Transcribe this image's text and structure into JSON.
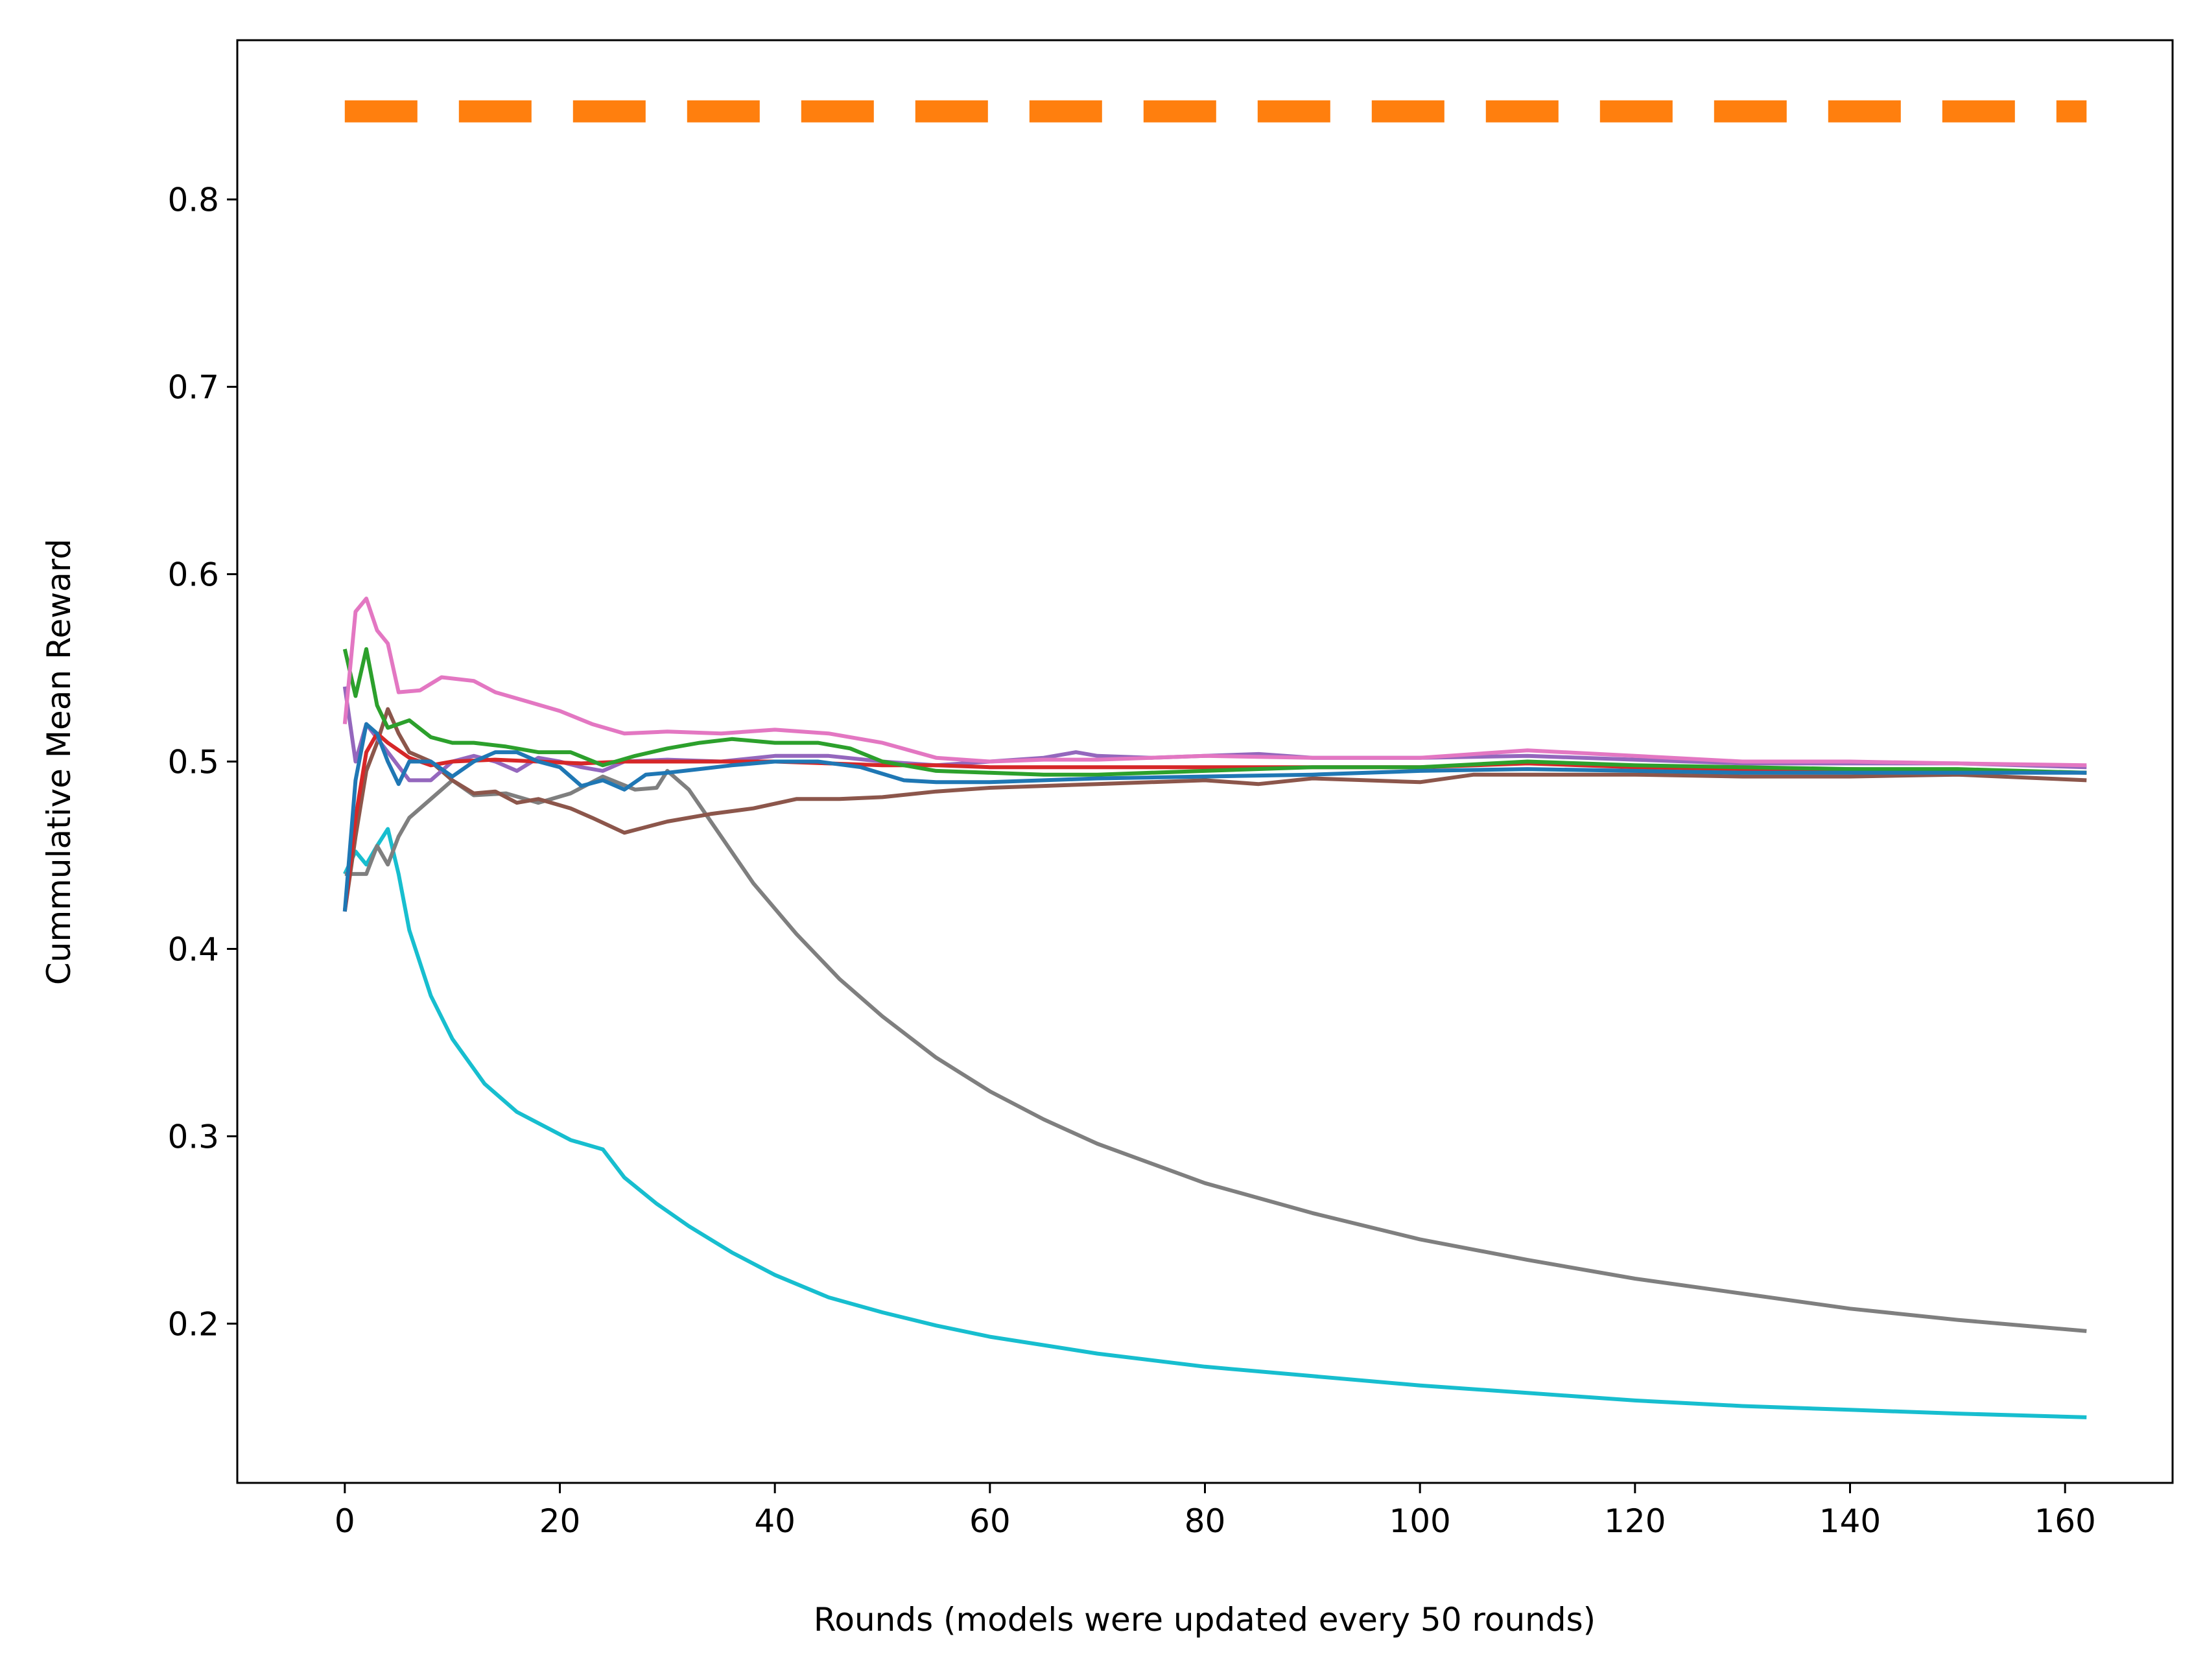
{
  "chart_data": {
    "type": "line",
    "title": "",
    "xlabel": "Rounds (models were updated every 50 rounds)",
    "ylabel": "Cummulative Mean Reward",
    "xlim": [
      -10,
      170
    ],
    "ylim": [
      0.115,
      0.885
    ],
    "xticks": [
      0,
      20,
      40,
      60,
      80,
      100,
      120,
      140,
      160
    ],
    "yticks": [
      0.2,
      0.3,
      0.4,
      0.5,
      0.6,
      0.7,
      0.8
    ],
    "x_tick_labels": [
      "0",
      "20",
      "40",
      "60",
      "80",
      "100",
      "120",
      "140",
      "160"
    ],
    "y_tick_labels": [
      "0.2",
      "0.3",
      "0.4",
      "0.5",
      "0.6",
      "0.7",
      "0.8"
    ],
    "grid": false,
    "legend": "none",
    "series": [
      {
        "color": "#ff7f0e",
        "style": "dashed",
        "points": [
          [
            0,
            0.847
          ],
          [
            162,
            0.847
          ]
        ]
      },
      {
        "color": "#17becf",
        "points": [
          [
            0,
            0.44
          ],
          [
            1,
            0.452
          ],
          [
            2,
            0.445
          ],
          [
            3,
            0.455
          ],
          [
            4,
            0.464
          ],
          [
            5,
            0.44
          ],
          [
            6,
            0.41
          ],
          [
            8,
            0.375
          ],
          [
            10,
            0.352
          ],
          [
            13,
            0.328
          ],
          [
            16,
            0.313
          ],
          [
            18,
            0.307
          ],
          [
            21,
            0.298
          ],
          [
            24,
            0.293
          ],
          [
            26,
            0.278
          ],
          [
            29,
            0.264
          ],
          [
            32,
            0.252
          ],
          [
            36,
            0.238
          ],
          [
            40,
            0.226
          ],
          [
            45,
            0.214
          ],
          [
            50,
            0.206
          ],
          [
            55,
            0.199
          ],
          [
            60,
            0.193
          ],
          [
            70,
            0.184
          ],
          [
            80,
            0.177
          ],
          [
            90,
            0.172
          ],
          [
            100,
            0.167
          ],
          [
            110,
            0.163
          ],
          [
            120,
            0.159
          ],
          [
            130,
            0.156
          ],
          [
            140,
            0.154
          ],
          [
            150,
            0.152
          ],
          [
            162,
            0.15
          ]
        ]
      },
      {
        "color": "#7f7f7f",
        "points": [
          [
            0,
            0.44
          ],
          [
            2,
            0.44
          ],
          [
            3,
            0.455
          ],
          [
            4,
            0.445
          ],
          [
            5,
            0.46
          ],
          [
            6,
            0.47
          ],
          [
            8,
            0.48
          ],
          [
            10,
            0.49
          ],
          [
            12,
            0.482
          ],
          [
            15,
            0.483
          ],
          [
            18,
            0.478
          ],
          [
            21,
            0.483
          ],
          [
            24,
            0.492
          ],
          [
            27,
            0.485
          ],
          [
            29,
            0.486
          ],
          [
            30,
            0.495
          ],
          [
            32,
            0.485
          ],
          [
            35,
            0.46
          ],
          [
            38,
            0.435
          ],
          [
            42,
            0.408
          ],
          [
            46,
            0.384
          ],
          [
            50,
            0.364
          ],
          [
            55,
            0.342
          ],
          [
            60,
            0.324
          ],
          [
            65,
            0.309
          ],
          [
            70,
            0.296
          ],
          [
            80,
            0.275
          ],
          [
            90,
            0.259
          ],
          [
            100,
            0.245
          ],
          [
            110,
            0.234
          ],
          [
            120,
            0.224
          ],
          [
            130,
            0.216
          ],
          [
            140,
            0.208
          ],
          [
            150,
            0.202
          ],
          [
            162,
            0.196
          ]
        ]
      },
      {
        "color": "#8c564b",
        "points": [
          [
            0,
            0.42
          ],
          [
            1,
            0.46
          ],
          [
            2,
            0.495
          ],
          [
            3,
            0.51
          ],
          [
            4,
            0.528
          ],
          [
            5,
            0.515
          ],
          [
            6,
            0.505
          ],
          [
            8,
            0.5
          ],
          [
            10,
            0.49
          ],
          [
            12,
            0.483
          ],
          [
            14,
            0.484
          ],
          [
            16,
            0.478
          ],
          [
            18,
            0.48
          ],
          [
            21,
            0.475
          ],
          [
            23,
            0.47
          ],
          [
            26,
            0.462
          ],
          [
            28,
            0.465
          ],
          [
            30,
            0.468
          ],
          [
            34,
            0.472
          ],
          [
            38,
            0.475
          ],
          [
            42,
            0.48
          ],
          [
            46,
            0.48
          ],
          [
            50,
            0.481
          ],
          [
            55,
            0.484
          ],
          [
            60,
            0.486
          ],
          [
            65,
            0.487
          ],
          [
            70,
            0.488
          ],
          [
            80,
            0.49
          ],
          [
            85,
            0.488
          ],
          [
            90,
            0.491
          ],
          [
            95,
            0.49
          ],
          [
            100,
            0.489
          ],
          [
            105,
            0.493
          ],
          [
            110,
            0.493
          ],
          [
            120,
            0.493
          ],
          [
            130,
            0.492
          ],
          [
            140,
            0.492
          ],
          [
            150,
            0.493
          ],
          [
            162,
            0.49
          ]
        ]
      },
      {
        "color": "#9467bd",
        "points": [
          [
            0,
            0.54
          ],
          [
            1,
            0.5
          ],
          [
            2,
            0.52
          ],
          [
            4,
            0.505
          ],
          [
            6,
            0.49
          ],
          [
            8,
            0.49
          ],
          [
            10,
            0.5
          ],
          [
            12,
            0.503
          ],
          [
            14,
            0.5
          ],
          [
            16,
            0.495
          ],
          [
            18,
            0.502
          ],
          [
            20,
            0.5
          ],
          [
            22,
            0.497
          ],
          [
            24,
            0.495
          ],
          [
            26,
            0.5
          ],
          [
            30,
            0.501
          ],
          [
            35,
            0.5
          ],
          [
            40,
            0.503
          ],
          [
            45,
            0.503
          ],
          [
            50,
            0.5
          ],
          [
            55,
            0.498
          ],
          [
            60,
            0.5
          ],
          [
            65,
            0.502
          ],
          [
            68,
            0.505
          ],
          [
            70,
            0.503
          ],
          [
            75,
            0.502
          ],
          [
            80,
            0.503
          ],
          [
            85,
            0.504
          ],
          [
            90,
            0.502
          ],
          [
            100,
            0.502
          ],
          [
            110,
            0.503
          ],
          [
            120,
            0.501
          ],
          [
            130,
            0.499
          ],
          [
            140,
            0.499
          ],
          [
            150,
            0.499
          ],
          [
            162,
            0.497
          ]
        ]
      },
      {
        "color": "#d62728",
        "points": [
          [
            0,
            0.42
          ],
          [
            1,
            0.47
          ],
          [
            2,
            0.505
          ],
          [
            3,
            0.515
          ],
          [
            4,
            0.51
          ],
          [
            6,
            0.502
          ],
          [
            8,
            0.498
          ],
          [
            10,
            0.5
          ],
          [
            14,
            0.501
          ],
          [
            18,
            0.5
          ],
          [
            22,
            0.499
          ],
          [
            26,
            0.5
          ],
          [
            30,
            0.5
          ],
          [
            35,
            0.5
          ],
          [
            40,
            0.5
          ],
          [
            45,
            0.499
          ],
          [
            50,
            0.498
          ],
          [
            55,
            0.498
          ],
          [
            60,
            0.497
          ],
          [
            65,
            0.497
          ],
          [
            70,
            0.497
          ],
          [
            80,
            0.497
          ],
          [
            90,
            0.497
          ],
          [
            100,
            0.497
          ],
          [
            110,
            0.499
          ],
          [
            120,
            0.497
          ],
          [
            130,
            0.496
          ],
          [
            140,
            0.496
          ],
          [
            150,
            0.495
          ],
          [
            162,
            0.494
          ]
        ]
      },
      {
        "color": "#2ca02c",
        "points": [
          [
            0,
            0.56
          ],
          [
            1,
            0.535
          ],
          [
            2,
            0.56
          ],
          [
            3,
            0.53
          ],
          [
            4,
            0.518
          ],
          [
            6,
            0.522
          ],
          [
            8,
            0.513
          ],
          [
            10,
            0.51
          ],
          [
            12,
            0.51
          ],
          [
            15,
            0.508
          ],
          [
            18,
            0.505
          ],
          [
            21,
            0.505
          ],
          [
            24,
            0.498
          ],
          [
            27,
            0.503
          ],
          [
            30,
            0.507
          ],
          [
            33,
            0.51
          ],
          [
            36,
            0.512
          ],
          [
            40,
            0.51
          ],
          [
            44,
            0.51
          ],
          [
            47,
            0.507
          ],
          [
            50,
            0.5
          ],
          [
            55,
            0.495
          ],
          [
            60,
            0.494
          ],
          [
            65,
            0.493
          ],
          [
            70,
            0.493
          ],
          [
            80,
            0.495
          ],
          [
            90,
            0.497
          ],
          [
            100,
            0.497
          ],
          [
            110,
            0.5
          ],
          [
            120,
            0.498
          ],
          [
            130,
            0.497
          ],
          [
            140,
            0.496
          ],
          [
            150,
            0.496
          ],
          [
            162,
            0.494
          ]
        ]
      },
      {
        "color": "#e377c2",
        "points": [
          [
            0,
            0.52
          ],
          [
            1,
            0.58
          ],
          [
            2,
            0.587
          ],
          [
            3,
            0.57
          ],
          [
            4,
            0.563
          ],
          [
            5,
            0.537
          ],
          [
            7,
            0.538
          ],
          [
            9,
            0.545
          ],
          [
            12,
            0.543
          ],
          [
            14,
            0.537
          ],
          [
            17,
            0.532
          ],
          [
            20,
            0.527
          ],
          [
            23,
            0.52
          ],
          [
            26,
            0.515
          ],
          [
            30,
            0.516
          ],
          [
            35,
            0.515
          ],
          [
            40,
            0.517
          ],
          [
            45,
            0.515
          ],
          [
            50,
            0.51
          ],
          [
            55,
            0.502
          ],
          [
            60,
            0.5
          ],
          [
            65,
            0.501
          ],
          [
            70,
            0.501
          ],
          [
            80,
            0.503
          ],
          [
            90,
            0.502
          ],
          [
            100,
            0.502
          ],
          [
            110,
            0.506
          ],
          [
            120,
            0.503
          ],
          [
            130,
            0.5
          ],
          [
            140,
            0.5
          ],
          [
            150,
            0.499
          ],
          [
            162,
            0.498
          ]
        ]
      },
      {
        "color": "#1f77b4",
        "points": [
          [
            0,
            0.42
          ],
          [
            1,
            0.49
          ],
          [
            2,
            0.52
          ],
          [
            3,
            0.515
          ],
          [
            4,
            0.5
          ],
          [
            5,
            0.488
          ],
          [
            6,
            0.5
          ],
          [
            8,
            0.5
          ],
          [
            10,
            0.492
          ],
          [
            12,
            0.5
          ],
          [
            14,
            0.505
          ],
          [
            16,
            0.505
          ],
          [
            18,
            0.5
          ],
          [
            20,
            0.497
          ],
          [
            22,
            0.487
          ],
          [
            24,
            0.49
          ],
          [
            26,
            0.485
          ],
          [
            28,
            0.493
          ],
          [
            30,
            0.494
          ],
          [
            33,
            0.496
          ],
          [
            36,
            0.498
          ],
          [
            40,
            0.5
          ],
          [
            44,
            0.5
          ],
          [
            48,
            0.497
          ],
          [
            52,
            0.49
          ],
          [
            55,
            0.489
          ],
          [
            60,
            0.489
          ],
          [
            65,
            0.49
          ],
          [
            70,
            0.491
          ],
          [
            80,
            0.492
          ],
          [
            90,
            0.493
          ],
          [
            100,
            0.495
          ],
          [
            110,
            0.496
          ],
          [
            120,
            0.495
          ],
          [
            130,
            0.494
          ],
          [
            140,
            0.494
          ],
          [
            150,
            0.494
          ],
          [
            162,
            0.494
          ]
        ]
      }
    ]
  }
}
